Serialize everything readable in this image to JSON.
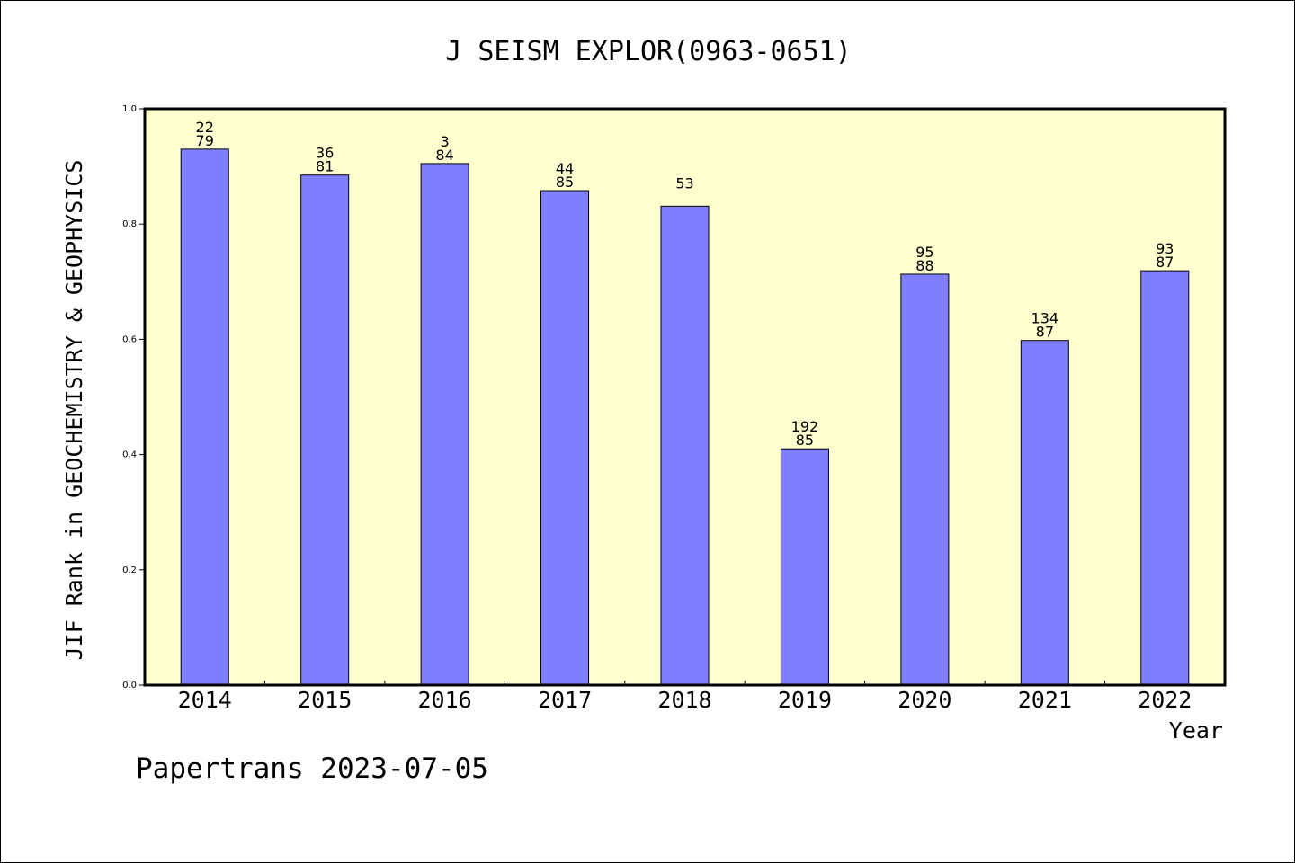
{
  "chart_data": {
    "type": "bar",
    "title": "J SEISM EXPLOR(0963-0651)",
    "xlabel": "Year",
    "ylabel": "JIF Rank in GEOCHEMISTRY & GEOPHYSICS",
    "ylim": [
      0,
      1
    ],
    "yticks": [
      "0.0",
      "0.2",
      "0.4",
      "0.6",
      "0.8",
      "1.0"
    ],
    "categories": [
      "2014",
      "2015",
      "2016",
      "2017",
      "2018",
      "2019",
      "2020",
      "2021",
      "2022"
    ],
    "values": [
      0.93,
      0.885,
      0.905,
      0.858,
      0.831,
      0.41,
      0.713,
      0.598,
      0.719
    ],
    "labels_top": [
      "22",
      "36",
      "3",
      "44",
      "53",
      "192",
      "95",
      "134",
      "93"
    ],
    "labels_bottom": [
      "79",
      "81",
      "84",
      "85",
      "",
      "85",
      "88",
      "87",
      "87"
    ],
    "plot_background": "#ffffd0",
    "bar_color": "#8080ff",
    "grid": false
  },
  "footer": "Papertrans 2023-07-05"
}
